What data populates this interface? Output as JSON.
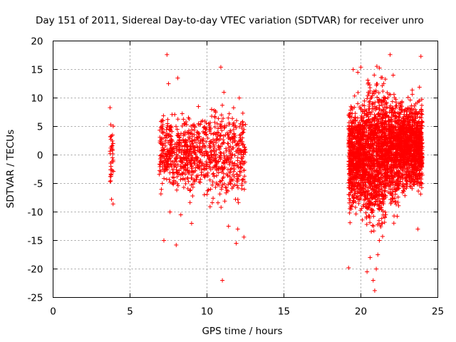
{
  "chart_data": {
    "type": "scatter",
    "title": "Day 151 of 2011, Sidereal Day-to-day VTEC variation (SDTVAR) for receiver unro",
    "xlabel": "GPS time / hours",
    "ylabel": "SDTVAR / TECUs",
    "xlim": [
      0,
      25
    ],
    "ylim": [
      -25,
      20
    ],
    "xticks": [
      0,
      5,
      10,
      15,
      20,
      25
    ],
    "yticks": [
      -25,
      -20,
      -15,
      -10,
      -5,
      0,
      5,
      10,
      15,
      20
    ],
    "grid": true,
    "marker": "+",
    "marker_color": "#ff0000",
    "series": [
      {
        "name": "SDTVAR",
        "points_note": "dense clusters approximated",
        "x": [
          3.7,
          3.75,
          3.8,
          3.82,
          3.85,
          3.88,
          3.9,
          3.78,
          3.72,
          3.86,
          3.8,
          3.9,
          3.84,
          3.76,
          7.0,
          7.1,
          7.2,
          7.3,
          7.5,
          7.8,
          8.0,
          8.2,
          8.5,
          8.8,
          9.0,
          9.2,
          9.5,
          9.8,
          10.0,
          10.2,
          10.5,
          10.8,
          11.0,
          11.2,
          11.5,
          11.8,
          12.0,
          12.2,
          12.4,
          7.4,
          7.5,
          8.1,
          8.3,
          10.9,
          11.0,
          11.9,
          12.0,
          12.4,
          9.0,
          11.1,
          7.2,
          7.6,
          8.0,
          10.3,
          11.4,
          12.1,
          19.3,
          19.4,
          19.5,
          19.7,
          19.9,
          20.0,
          20.2,
          20.5,
          20.7,
          20.9,
          21.0,
          21.1,
          21.3,
          21.5,
          21.8,
          22.0,
          22.3,
          22.6,
          22.9,
          23.2,
          23.5,
          23.8,
          23.9,
          19.2,
          19.5,
          19.8,
          20.0,
          21.9,
          22.1,
          23.9,
          23.7,
          20.6,
          20.8,
          20.9,
          21.0,
          21.1,
          21.2,
          20.4,
          21.4
        ],
        "y": [
          8.3,
          5.3,
          1.5,
          -1.2,
          -2.8,
          0.2,
          2.0,
          -3.5,
          3.2,
          -0.5,
          -7.8,
          -8.6,
          1.0,
          -2.0,
          2.0,
          -5.0,
          4.0,
          -1.0,
          0.5,
          -3.0,
          1.5,
          3.0,
          -2.0,
          0.0,
          2.5,
          -1.5,
          1.0,
          -3.5,
          0.0,
          2.0,
          -1.0,
          1.0,
          -2.5,
          3.5,
          0.5,
          -1.5,
          2.0,
          -3.0,
          0.5,
          17.6,
          12.5,
          13.5,
          -10.5,
          15.4,
          -22.0,
          -15.5,
          -13.0,
          -14.4,
          -12.0,
          11.0,
          -15.0,
          -10.0,
          -15.8,
          8.0,
          -12.5,
          10.0,
          -2.0,
          5.0,
          -8.0,
          3.0,
          -4.0,
          1.0,
          -6.0,
          2.0,
          -3.0,
          4.0,
          -1.0,
          5.0,
          -2.0,
          3.0,
          0.0,
          2.0,
          4.0,
          -1.0,
          1.0,
          3.0,
          -2.0,
          0.0,
          2.0,
          -19.8,
          15.0,
          14.5,
          15.4,
          17.6,
          14.0,
          17.3,
          -13.0,
          -18.0,
          -22.0,
          -23.8,
          -20.0,
          -17.5,
          -15.0,
          -20.5,
          -12.0
        ]
      }
    ]
  }
}
